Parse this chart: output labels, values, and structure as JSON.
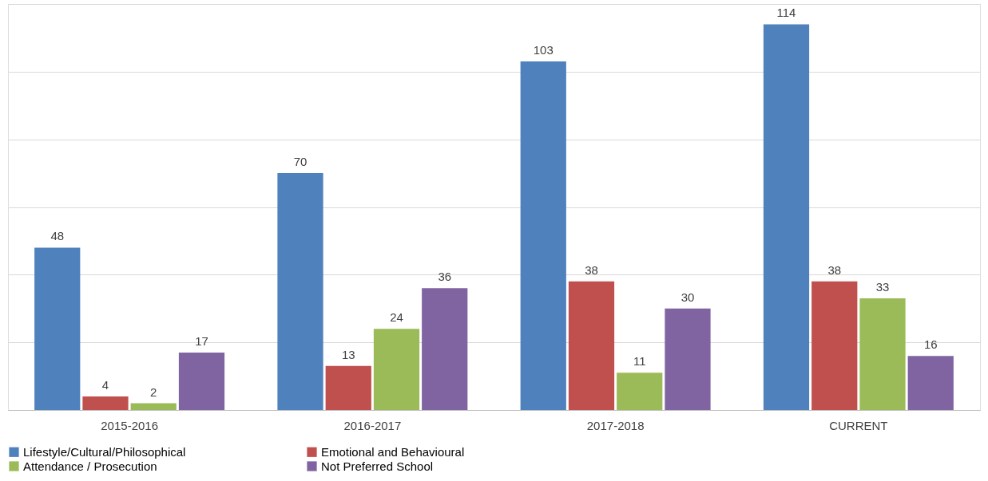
{
  "chart_data": {
    "type": "bar",
    "categories": [
      "2015-2016",
      "2016-2017",
      "2017-2018",
      "CURRENT"
    ],
    "series": [
      {
        "name": "Lifestyle/Cultural/Philosophical",
        "color": "#4f81bd",
        "values": [
          48,
          70,
          103,
          114
        ]
      },
      {
        "name": "Emotional and Behavioural",
        "color": "#c0504d",
        "values": [
          4,
          13,
          38,
          38
        ]
      },
      {
        "name": "Attendance / Prosecution",
        "color": "#9bbb59",
        "values": [
          2,
          24,
          11,
          33
        ]
      },
      {
        "name": "Not Preferred School",
        "color": "#8064a2",
        "values": [
          17,
          36,
          30,
          16
        ]
      }
    ],
    "ylim": [
      0,
      120
    ],
    "yticks": [
      {
        "value": 0,
        "label": null
      },
      {
        "value": 20,
        "label": null
      },
      {
        "value": 40,
        "label": null
      },
      {
        "value": 60,
        "label": null
      },
      {
        "value": 80,
        "label": null
      },
      {
        "value": 100,
        "label": null
      },
      {
        "value": 120,
        "label": null
      }
    ],
    "tick_labels": "x",
    "grid": "y",
    "legend": "bottom",
    "data_labels": true
  }
}
